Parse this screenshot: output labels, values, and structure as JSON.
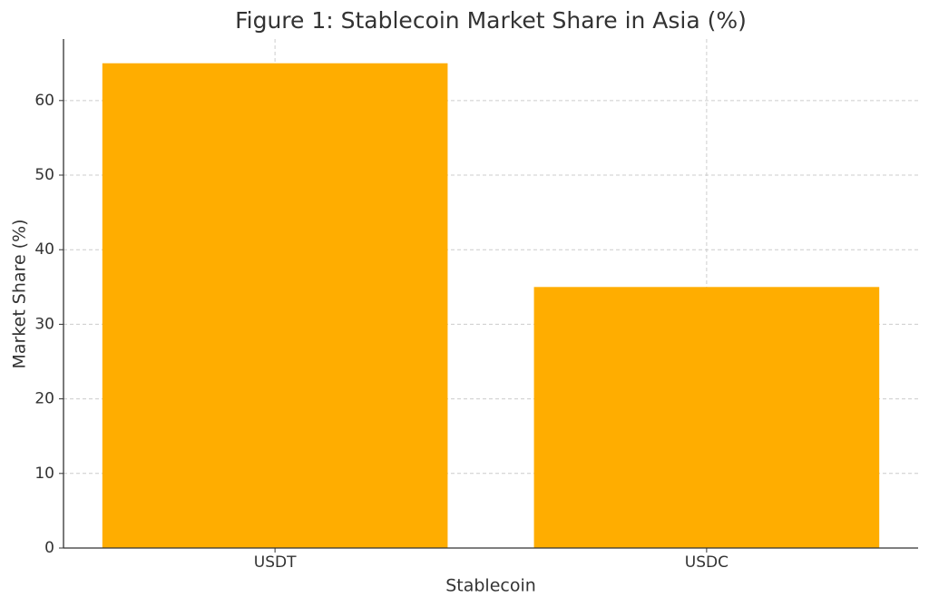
{
  "chart_data": {
    "type": "bar",
    "title": "Figure 1: Stablecoin Market Share in Asia (%)",
    "x_label": "Stablecoin",
    "y_label": "Market Share (%)",
    "categories": [
      "USDT",
      "USDC"
    ],
    "values": [
      65,
      35
    ],
    "color": "#ffad00",
    "ylim": [
      0,
      68.25
    ],
    "yticks": [
      0,
      10,
      20,
      30,
      40,
      50,
      60
    ],
    "grid": true
  }
}
